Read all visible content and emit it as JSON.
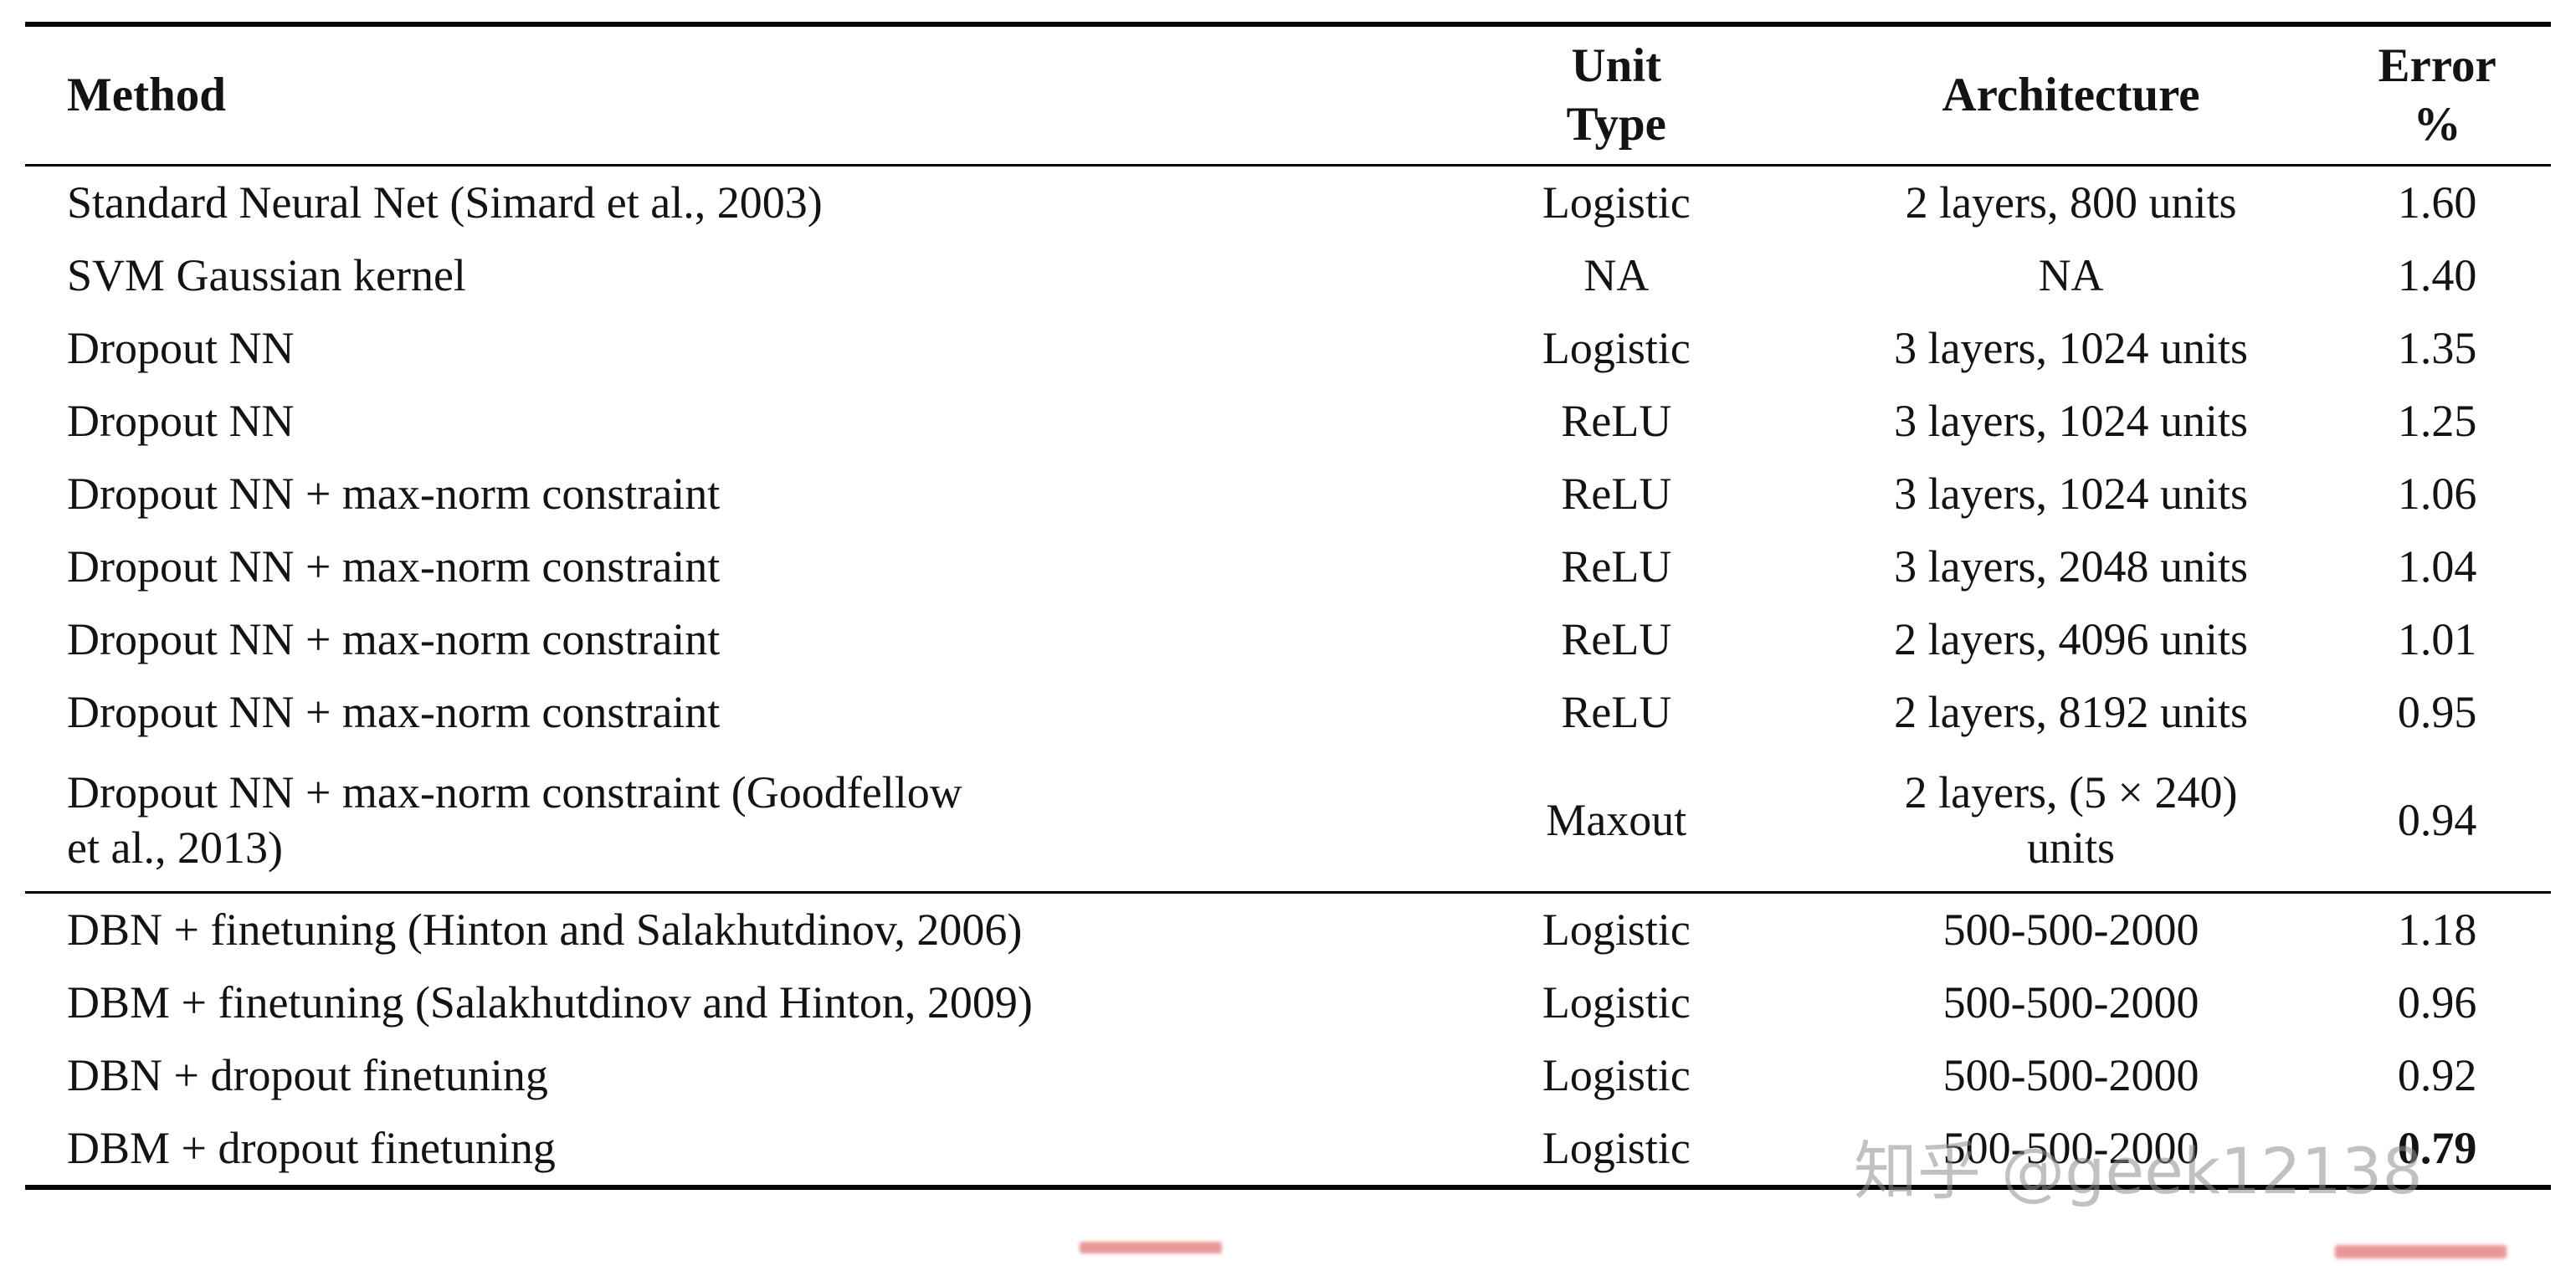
{
  "table": {
    "header": {
      "method": "Method",
      "unit_type": "Unit\nType",
      "architecture": "Architecture",
      "error": "Error\n%"
    },
    "rows_top": [
      {
        "method": "Standard Neural Net (Simard et al., 2003)",
        "unit": "Logistic",
        "arch": "2 layers, 800 units",
        "error": "1.60"
      },
      {
        "method": "SVM Gaussian kernel",
        "unit": "NA",
        "arch": "NA",
        "error": "1.40"
      },
      {
        "method": "Dropout NN",
        "unit": "Logistic",
        "arch": "3 layers, 1024 units",
        "error": "1.35"
      },
      {
        "method": "Dropout NN",
        "unit": "ReLU",
        "arch": "3 layers, 1024 units",
        "error": "1.25"
      },
      {
        "method": "Dropout NN + max-norm constraint",
        "unit": "ReLU",
        "arch": "3 layers, 1024 units",
        "error": "1.06"
      },
      {
        "method": "Dropout NN + max-norm constraint",
        "unit": "ReLU",
        "arch": "3 layers, 2048 units",
        "error": "1.04"
      },
      {
        "method": "Dropout NN + max-norm constraint",
        "unit": "ReLU",
        "arch": "2 layers, 4096 units",
        "error": "1.01"
      },
      {
        "method": "Dropout NN + max-norm constraint",
        "unit": "ReLU",
        "arch": "2 layers, 8192 units",
        "error": "0.95"
      },
      {
        "method": "Dropout NN + max-norm constraint (Goodfellow\net al., 2013)",
        "unit": "Maxout",
        "arch": "2 layers, (5 × 240)\nunits",
        "error": "0.94"
      }
    ],
    "rows_bottom": [
      {
        "method": "DBN + finetuning (Hinton and Salakhutdinov, 2006)",
        "unit": "Logistic",
        "arch": "500-500-2000",
        "error": "1.18"
      },
      {
        "method": "DBM + finetuning (Salakhutdinov and Hinton, 2009)",
        "unit": "Logistic",
        "arch": "500-500-2000",
        "error": "0.96"
      },
      {
        "method": "DBN + dropout finetuning",
        "unit": "Logistic",
        "arch": "500-500-2000",
        "error": "0.92"
      },
      {
        "method": "DBM + dropout finetuning",
        "unit": "Logistic",
        "arch": "500-500-2000",
        "error": "0.79"
      }
    ],
    "colors": {
      "text": "#131313",
      "rule": "#000000",
      "watermark": "#8f8f8f",
      "red_mark": "#d72d2d"
    }
  },
  "watermark": {
    "text": "知乎 @geek12138"
  }
}
